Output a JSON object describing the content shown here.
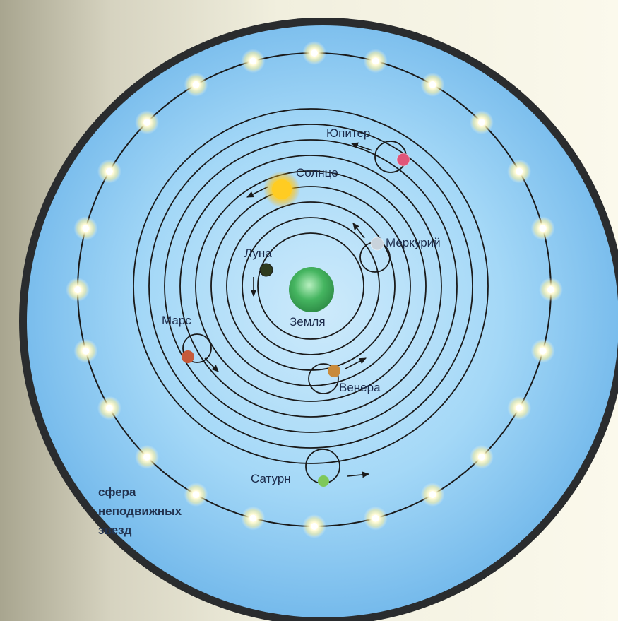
{
  "diagram": {
    "center_label": "Земля",
    "planets": [
      {
        "name": "Луна",
        "color": "#2e3b1e"
      },
      {
        "name": "Меркурий",
        "color": "#c9d3dc"
      },
      {
        "name": "Венера",
        "color": "#c98a3a"
      },
      {
        "name": "Солнце",
        "color": "#ffcc22"
      },
      {
        "name": "Марс",
        "color": "#c65a3a"
      },
      {
        "name": "Юпитер",
        "color": "#e0557a"
      },
      {
        "name": "Сатурн",
        "color": "#7ec85a"
      }
    ],
    "stars_label": [
      "сфера",
      "неподвижных",
      "звезд"
    ],
    "colors": {
      "sky": "#8ecdf3",
      "rim": "#2a2c2e",
      "earth": "#3fae5a",
      "orbit": "#1a1a1a"
    }
  }
}
